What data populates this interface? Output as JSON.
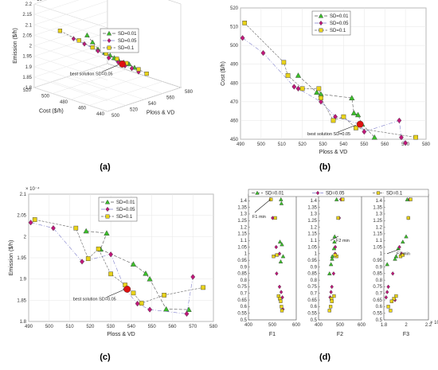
{
  "colors": {
    "sd001": "#3bbf2a",
    "sd005": "#c0177a",
    "sd01": "#e8d21a",
    "line001": "#555555",
    "line005": "#8080cc",
    "line01": "#666666"
  },
  "legend": [
    "SD=0.01",
    "SD=0.05",
    "SD=0.1"
  ],
  "chart_data": [
    {
      "panel": "a",
      "type": "scatter",
      "caption": "(a)",
      "xlabel": "Ploss & VD",
      "ylabel": "Cost ($/h)",
      "zlabel": "Emission ($/h)",
      "xticks": [
        "500",
        "520",
        "540",
        "560",
        "580"
      ],
      "yticks": [
        "440",
        "460",
        "480",
        "500",
        "520"
      ],
      "zticks": [
        "1.8",
        "1.85",
        "1.9",
        "1.95",
        "2",
        "2.05",
        "2.1",
        "2.15",
        "2.2"
      ],
      "zexp": "× 10⁻⁴",
      "annotation": "best solution SD=0.05",
      "series": [
        {
          "name": "SD=0.01",
          "values": [
            {
              "p": [
                0.32,
                0.78
              ]
            },
            {
              "p": [
                0.36,
                0.7
              ]
            },
            {
              "p": [
                0.4,
                0.62
              ]
            },
            {
              "p": [
                0.45,
                0.58
              ]
            },
            {
              "p": [
                0.49,
                0.55
              ]
            },
            {
              "p": [
                0.52,
                0.52
              ]
            },
            {
              "p": [
                0.55,
                0.5
              ]
            },
            {
              "p": [
                0.59,
                0.47
              ]
            },
            {
              "p": [
                0.63,
                0.45
              ]
            },
            {
              "p": [
                0.67,
                0.41
              ]
            }
          ]
        },
        {
          "name": "SD=0.05",
          "values": [
            {
              "p": [
                0.22,
                0.74
              ]
            },
            {
              "p": [
                0.3,
                0.68
              ]
            },
            {
              "p": [
                0.4,
                0.6
              ]
            },
            {
              "p": [
                0.48,
                0.52
              ]
            },
            {
              "p": [
                0.55,
                0.47
              ]
            },
            {
              "p": [
                0.6,
                0.43
              ]
            },
            {
              "p": [
                0.65,
                0.4
              ]
            },
            {
              "p": [
                0.7,
                0.36
              ]
            }
          ]
        },
        {
          "name": "SD=0.1",
          "values": [
            {
              "p": [
                0.12,
                0.83
              ]
            },
            {
              "p": [
                0.26,
                0.72
              ]
            },
            {
              "p": [
                0.36,
                0.64
              ]
            },
            {
              "p": [
                0.46,
                0.57
              ]
            },
            {
              "p": [
                0.54,
                0.51
              ]
            },
            {
              "p": [
                0.61,
                0.46
              ]
            },
            {
              "p": [
                0.7,
                0.39
              ]
            },
            {
              "p": [
                0.76,
                0.34
              ]
            }
          ]
        }
      ]
    },
    {
      "panel": "b",
      "type": "scatter",
      "caption": "(b)",
      "xlabel": "Ploss & VD",
      "ylabel": "Cost ($/h)",
      "xlim": [
        490,
        580
      ],
      "ylim": [
        450,
        520
      ],
      "xticks": [
        490,
        500,
        510,
        520,
        530,
        540,
        550,
        560,
        570,
        580
      ],
      "yticks": [
        450,
        460,
        470,
        480,
        490,
        500,
        510,
        520
      ],
      "annotation": "best solution SD=0.05",
      "series": [
        {
          "name": "SD=0.01",
          "values": [
            [
              518,
              484
            ],
            [
              527,
              475
            ],
            [
              529,
              474
            ],
            [
              544,
              472
            ],
            [
              545,
              464
            ],
            [
              547,
              463
            ],
            [
              549,
              458
            ],
            [
              555,
              451
            ]
          ]
        },
        {
          "name": "SD=0.05",
          "values": [
            [
              491,
              504
            ],
            [
              501,
              496
            ],
            [
              516,
              478
            ],
            [
              518,
              477
            ],
            [
              529,
              470
            ],
            [
              536,
              462
            ],
            [
              548,
              458
            ],
            [
              550,
              454
            ],
            [
              567,
              460
            ],
            [
              568,
              451
            ],
            [
              570,
              448
            ]
          ]
        },
        {
          "name": "SD=0.1",
          "values": [
            [
              492,
              512
            ],
            [
              511,
              491
            ],
            [
              513,
              484
            ],
            [
              520,
              477
            ],
            [
              528,
              477
            ],
            [
              529,
              472
            ],
            [
              535,
              460
            ],
            [
              540,
              462
            ],
            [
              546,
              456
            ],
            [
              575,
              451
            ]
          ]
        }
      ]
    },
    {
      "panel": "c",
      "type": "scatter",
      "caption": "(c)",
      "xlabel": "Ploss & VD",
      "ylabel": "Emission ($/h)",
      "xlim": [
        490,
        580
      ],
      "ylim": [
        1.8,
        2.1
      ],
      "xticks": [
        490,
        500,
        510,
        520,
        530,
        540,
        550,
        560,
        570,
        580
      ],
      "yticks": [
        "1.8",
        "1.85",
        "1.9",
        "1.95",
        "2",
        "2.05",
        "2.1"
      ],
      "yexp": "× 10⁻⁴",
      "annotation": "best solution SD=0.05",
      "series": [
        {
          "name": "SD=0.01",
          "values": [
            [
              518,
              2.013
            ],
            [
              528,
              2.008
            ],
            [
              525,
              1.97
            ],
            [
              541,
              1.935
            ],
            [
              547,
              1.913
            ],
            [
              549,
              1.9
            ],
            [
              557,
              1.829
            ],
            [
              568,
              1.828
            ]
          ]
        },
        {
          "name": "SD=0.05",
          "values": [
            [
              491,
              2.033
            ],
            [
              502,
              2.02
            ],
            [
              516,
              1.941
            ],
            [
              530,
              1.958
            ],
            [
              537,
              1.876
            ],
            [
              543,
              1.842
            ],
            [
              549,
              1.828
            ],
            [
              567,
              1.818
            ],
            [
              570,
              1.905
            ]
          ]
        },
        {
          "name": "SD=0.1",
          "values": [
            [
              493,
              2.04
            ],
            [
              513,
              2.02
            ],
            [
              519,
              1.948
            ],
            [
              524,
              1.971
            ],
            [
              530,
              1.912
            ],
            [
              537,
              1.886
            ],
            [
              541,
              1.867
            ],
            [
              545,
              1.843
            ],
            [
              556,
              1.862
            ],
            [
              575,
              1.88
            ]
          ]
        }
      ]
    },
    {
      "panel": "d",
      "type": "scatter",
      "caption": "(d)",
      "ylim": [
        0.5,
        1.45
      ],
      "yticks": [
        "0.5",
        "0.55",
        "0.6",
        "0.65",
        "0.7",
        "0.75",
        "0.8",
        "0.85",
        "0.9",
        "0.95",
        "1",
        "1.05",
        "1.1",
        "1.15",
        "1.2",
        "1.25",
        "1.3",
        "1.35",
        "1.4"
      ],
      "subplots": [
        {
          "xlabel": "F1",
          "xlim": [
            400,
            600
          ],
          "xticks": [
            "400",
            "500",
            "600"
          ],
          "annotation": "F1 min",
          "series": [
            {
              "name": "SD=0.01",
              "values": [
                [
                  536,
                  1.41
                ],
                [
                  538,
                  1.38
                ],
                [
                  532,
                  1.09
                ],
                [
                  540,
                  1.07
                ],
                [
                  545,
                  0.98
                ],
                [
                  535,
                  0.94
                ]
              ]
            },
            {
              "name": "SD=0.05",
              "values": [
                [
                  492,
                  1.41
                ],
                [
                  501,
                  1.27
                ],
                [
                  516,
                  1.05
                ],
                [
                  530,
                  1.0
                ],
                [
                  518,
                  0.85
                ],
                [
                  530,
                  0.75
                ],
                [
                  537,
                  0.71
                ],
                [
                  542,
                  0.67
                ],
                [
                  544,
                  0.58
                ]
              ]
            },
            {
              "name": "SD=0.1",
              "values": [
                [
                  494,
                  1.41
                ],
                [
                  512,
                  1.27
                ],
                [
                  505,
                  0.98
                ],
                [
                  519,
                  0.99
                ],
                [
                  526,
                  0.68
                ],
                [
                  531,
                  0.66
                ],
                [
                  535,
                  0.64
                ],
                [
                  538,
                  0.6
                ],
                [
                  540,
                  0.57
                ]
              ]
            }
          ]
        },
        {
          "xlabel": "F2",
          "xlim": [
            400,
            600
          ],
          "xticks": [
            "400",
            "500",
            "600"
          ],
          "annotation": "F2 min",
          "series": [
            {
              "name": "SD=0.01",
              "values": [
                [
                  484,
                  1.41
                ],
                [
                  475,
                  1.13
                ],
                [
                  474,
                  1.09
                ],
                [
                  472,
                  1.04
                ],
                [
                  464,
                  0.98
                ],
                [
                  463,
                  0.96
                ],
                [
                  458,
                  0.92
                ],
                [
                  451,
                  0.85
                ]
              ]
            },
            {
              "name": "SD=0.05",
              "values": [
                [
                  504,
                  1.41
                ],
                [
                  496,
                  1.27
                ],
                [
                  478,
                  1.05
                ],
                [
                  477,
                  1.0
                ],
                [
                  470,
                  0.85
                ],
                [
                  462,
                  0.75
                ],
                [
                  458,
                  0.71
                ],
                [
                  454,
                  0.67
                ],
                [
                  460,
                  0.65
                ]
              ]
            },
            {
              "name": "SD=0.1",
              "values": [
                [
                  512,
                  1.41
                ],
                [
                  491,
                  1.27
                ],
                [
                  484,
                  0.98
                ],
                [
                  477,
                  0.99
                ],
                [
                  472,
                  0.68
                ],
                [
                  460,
                  0.66
                ],
                [
                  462,
                  0.64
                ],
                [
                  456,
                  0.6
                ],
                [
                  451,
                  0.57
                ]
              ]
            }
          ]
        },
        {
          "xlabel": "F3",
          "xlim": [
            1.8,
            2.2
          ],
          "xticks": [
            "1.8",
            "2",
            "2.2"
          ],
          "xexp": "× 10⁻⁴",
          "annotation": "F3 min",
          "series": [
            {
              "name": "SD=0.01",
              "values": [
                [
                  2.01,
                  1.41
                ],
                [
                  2.0,
                  1.13
                ],
                [
                  1.97,
                  1.09
                ],
                [
                  1.93,
                  1.04
                ],
                [
                  1.91,
                  0.98
                ],
                [
                  1.9,
                  0.96
                ],
                [
                  1.83,
                  0.92
                ]
              ]
            },
            {
              "name": "SD=0.05",
              "values": [
                [
                  2.03,
                  1.41
                ],
                [
                  2.02,
                  1.27
                ],
                [
                  1.94,
                  1.05
                ],
                [
                  1.96,
                  1.0
                ],
                [
                  1.88,
                  0.85
                ],
                [
                  1.84,
                  0.75
                ],
                [
                  1.83,
                  0.71
                ],
                [
                  1.82,
                  0.67
                ],
                [
                  1.9,
                  0.65
                ]
              ]
            },
            {
              "name": "SD=0.1",
              "values": [
                [
                  2.04,
                  1.41
                ],
                [
                  2.02,
                  1.27
                ],
                [
                  1.95,
                  0.98
                ],
                [
                  1.97,
                  0.99
                ],
                [
                  1.91,
                  0.68
                ],
                [
                  1.89,
                  0.66
                ],
                [
                  1.87,
                  0.64
                ],
                [
                  1.84,
                  0.6
                ],
                [
                  1.86,
                  0.57
                ]
              ]
            }
          ]
        }
      ]
    }
  ]
}
